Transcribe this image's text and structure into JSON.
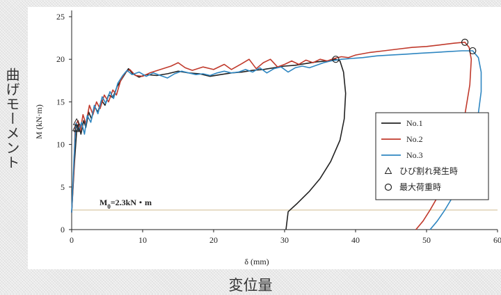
{
  "figure": {
    "outer_ylabel": "曲げモーメント",
    "outer_xlabel": "変位量"
  },
  "chart_data": {
    "type": "line",
    "xlabel": "δ (mm)",
    "ylabel": "M (kN·m)",
    "xlim": [
      0,
      60
    ],
    "ylim": [
      0,
      25
    ],
    "xticks": [
      "0",
      "10",
      "20",
      "30",
      "40",
      "50",
      "60"
    ],
    "yticks": [
      "0",
      "5",
      "10",
      "15",
      "20",
      "25"
    ],
    "grid": false,
    "legend_position": "lower-right",
    "legend": [
      {
        "label": "No.1",
        "kind": "line",
        "color": "#222222"
      },
      {
        "label": "No.2",
        "kind": "line",
        "color": "#c0392b"
      },
      {
        "label": "No.3",
        "kind": "line",
        "color": "#2e86c1"
      },
      {
        "label": "ひび割れ発生時",
        "kind": "triangle-marker",
        "color": "#222222"
      },
      {
        "label": "最大荷重時",
        "kind": "circle-marker",
        "color": "#222222"
      }
    ],
    "reference_line": {
      "y": 2.3,
      "label_main": "M",
      "label_sub": "0",
      "label_rest": "=2.3kN・m",
      "color": "#d8c9a6"
    },
    "series": [
      {
        "name": "No.1",
        "color": "#222222",
        "points": [
          [
            0,
            2
          ],
          [
            0.4,
            8
          ],
          [
            0.7,
            11.5
          ],
          [
            1,
            12.5
          ],
          [
            1.3,
            11.2
          ],
          [
            1.7,
            12.8
          ],
          [
            2,
            12
          ],
          [
            2.4,
            13.8
          ],
          [
            2.8,
            13
          ],
          [
            3.2,
            14.5
          ],
          [
            3.7,
            13.8
          ],
          [
            4.2,
            15.2
          ],
          [
            4.7,
            14.6
          ],
          [
            5.2,
            15.8
          ],
          [
            5.8,
            15.5
          ],
          [
            6.4,
            16.8
          ],
          [
            7,
            17.6
          ],
          [
            7.6,
            18.4
          ],
          [
            8,
            18.9
          ],
          [
            8.6,
            18.3
          ],
          [
            9.5,
            17.9
          ],
          [
            10.5,
            18.2
          ],
          [
            12,
            18.1
          ],
          [
            13.5,
            18.3
          ],
          [
            15,
            18.6
          ],
          [
            16.5,
            18.4
          ],
          [
            18,
            18.3
          ],
          [
            19.5,
            18
          ],
          [
            21,
            18.2
          ],
          [
            22.5,
            18.4
          ],
          [
            24,
            18.5
          ],
          [
            25.5,
            18.7
          ],
          [
            27,
            18.8
          ],
          [
            28.5,
            19
          ],
          [
            30,
            19.2
          ],
          [
            31.5,
            19.3
          ],
          [
            33,
            19.5
          ],
          [
            34.5,
            19.7
          ],
          [
            36,
            19.8
          ],
          [
            37.2,
            20
          ],
          [
            37.8,
            19.8
          ],
          [
            38.3,
            18.5
          ],
          [
            38.6,
            16
          ],
          [
            38.4,
            13
          ],
          [
            37.8,
            10.5
          ],
          [
            36.5,
            8
          ],
          [
            35,
            6
          ],
          [
            33.5,
            4.5
          ],
          [
            31.8,
            3.1
          ],
          [
            30.5,
            2.1
          ],
          [
            30.2,
            0
          ]
        ],
        "marker_triangle": [
          0.8,
          11.8
        ],
        "marker_circle": [
          37.2,
          20
        ]
      },
      {
        "name": "No.2",
        "color": "#c0392b",
        "points": [
          [
            0,
            2
          ],
          [
            0.3,
            7
          ],
          [
            0.5,
            12.2
          ],
          [
            0.9,
            12.8
          ],
          [
            1.2,
            11.5
          ],
          [
            1.6,
            13.5
          ],
          [
            2,
            12.4
          ],
          [
            2.5,
            14.6
          ],
          [
            3,
            13.5
          ],
          [
            3.5,
            15
          ],
          [
            4,
            14.2
          ],
          [
            4.6,
            15.8
          ],
          [
            5.2,
            15
          ],
          [
            5.8,
            16.4
          ],
          [
            6.3,
            15.8
          ],
          [
            6.9,
            17.5
          ],
          [
            7.5,
            18.4
          ],
          [
            8.2,
            18.8
          ],
          [
            9,
            18.1
          ],
          [
            10,
            18
          ],
          [
            11,
            18.4
          ],
          [
            12.5,
            18.8
          ],
          [
            14,
            19.2
          ],
          [
            15,
            19.6
          ],
          [
            16,
            19
          ],
          [
            17,
            18.7
          ],
          [
            18.5,
            19.1
          ],
          [
            20,
            18.8
          ],
          [
            21.5,
            19.4
          ],
          [
            22.5,
            18.8
          ],
          [
            24,
            19.5
          ],
          [
            25,
            20
          ],
          [
            26,
            18.9
          ],
          [
            27,
            19.6
          ],
          [
            28,
            20
          ],
          [
            29,
            19.1
          ],
          [
            30,
            19.4
          ],
          [
            31,
            19.8
          ],
          [
            32,
            19.4
          ],
          [
            33,
            19.9
          ],
          [
            34,
            19.6
          ],
          [
            35,
            20
          ],
          [
            36,
            19.8
          ],
          [
            37,
            20.1
          ],
          [
            38,
            20.3
          ],
          [
            39,
            20.2
          ],
          [
            40,
            20.5
          ],
          [
            42,
            20.8
          ],
          [
            44,
            21
          ],
          [
            46,
            21.2
          ],
          [
            48,
            21.4
          ],
          [
            50,
            21.5
          ],
          [
            52,
            21.7
          ],
          [
            54,
            21.9
          ],
          [
            55.4,
            22
          ],
          [
            56,
            21.4
          ],
          [
            56.3,
            20
          ],
          [
            56.1,
            17
          ],
          [
            55.3,
            13
          ],
          [
            54.2,
            9.5
          ],
          [
            53,
            6.5
          ],
          [
            51.8,
            4.2
          ],
          [
            50.5,
            2.3
          ],
          [
            49.5,
            1
          ],
          [
            48.5,
            0
          ]
        ],
        "marker_triangle": [
          0.7,
          12.6
        ],
        "marker_circle": [
          55.4,
          22
        ]
      },
      {
        "name": "No.3",
        "color": "#2e86c1",
        "points": [
          [
            0,
            2
          ],
          [
            0.3,
            8
          ],
          [
            0.6,
            12.5
          ],
          [
            1,
            11.6
          ],
          [
            1.4,
            12.6
          ],
          [
            1.8,
            11.2
          ],
          [
            2.2,
            13.4
          ],
          [
            2.7,
            12.6
          ],
          [
            3.2,
            14.6
          ],
          [
            3.7,
            13.6
          ],
          [
            4.3,
            15.6
          ],
          [
            4.8,
            14.8
          ],
          [
            5.4,
            16.2
          ],
          [
            5.9,
            15.4
          ],
          [
            6.5,
            17.2
          ],
          [
            7.2,
            18.1
          ],
          [
            7.8,
            18.7
          ],
          [
            8.5,
            18.2
          ],
          [
            9.5,
            18.5
          ],
          [
            10.5,
            18
          ],
          [
            11.5,
            18.4
          ],
          [
            12.5,
            18.1
          ],
          [
            13.5,
            17.8
          ],
          [
            14.5,
            18.3
          ],
          [
            15.5,
            18.6
          ],
          [
            16.5,
            18.4
          ],
          [
            17.5,
            18.2
          ],
          [
            18.5,
            18.3
          ],
          [
            19.5,
            18.1
          ],
          [
            20.5,
            18.4
          ],
          [
            21.5,
            18.6
          ],
          [
            22.5,
            18.4
          ],
          [
            23.5,
            18.5
          ],
          [
            24.5,
            18.8
          ],
          [
            25.5,
            18.5
          ],
          [
            26.5,
            19
          ],
          [
            27.5,
            18.4
          ],
          [
            28.5,
            18.9
          ],
          [
            29.5,
            19.1
          ],
          [
            30.5,
            18.5
          ],
          [
            31.5,
            19
          ],
          [
            32.5,
            19.2
          ],
          [
            33.5,
            19
          ],
          [
            34.5,
            19.3
          ],
          [
            35.5,
            19.6
          ],
          [
            36.5,
            19.8
          ],
          [
            38,
            20
          ],
          [
            39.5,
            20.1
          ],
          [
            41,
            20.2
          ],
          [
            43,
            20.4
          ],
          [
            45,
            20.5
          ],
          [
            47,
            20.6
          ],
          [
            49,
            20.7
          ],
          [
            51,
            20.8
          ],
          [
            53,
            20.9
          ],
          [
            55,
            21
          ],
          [
            56.5,
            21
          ],
          [
            57.3,
            20.2
          ],
          [
            57.7,
            18.5
          ],
          [
            57.7,
            16.2
          ],
          [
            57.2,
            13
          ],
          [
            56.2,
            9.5
          ],
          [
            55,
            6.5
          ],
          [
            53.8,
            4
          ],
          [
            52.5,
            2.2
          ],
          [
            51.5,
            1
          ],
          [
            50.5,
            0
          ]
        ],
        "marker_triangle": [
          0.6,
          11.9
        ],
        "marker_circle": [
          56.5,
          21
        ]
      }
    ]
  }
}
